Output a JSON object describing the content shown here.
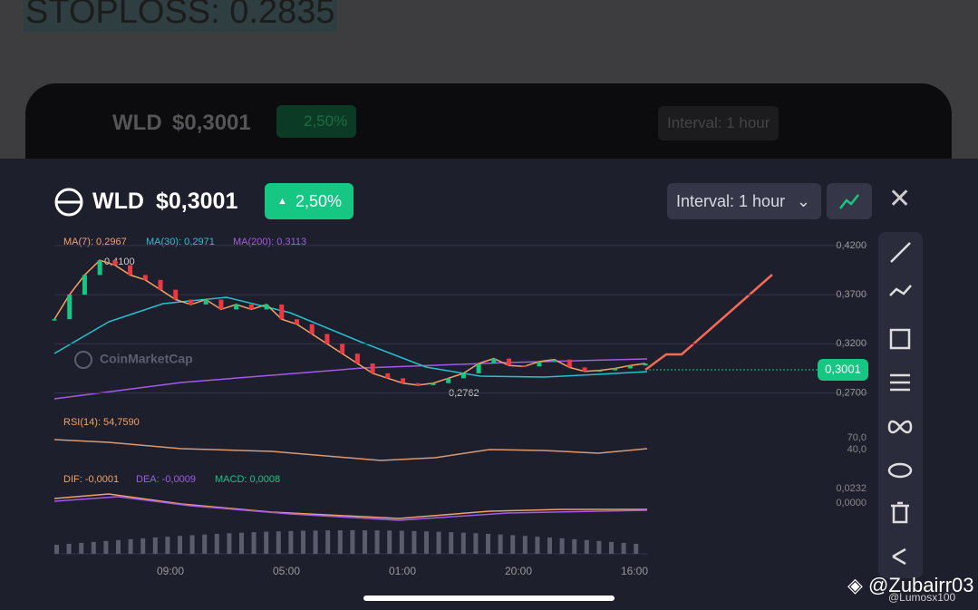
{
  "background": {
    "stoploss": "STOPLOSS: 0.2835",
    "symbol": "WLD",
    "price": "$0,3001",
    "change": "2,50%",
    "interval": "Interval: 1 hour"
  },
  "header": {
    "symbol": "WLD",
    "price": "$0,3001",
    "change": "2,50%",
    "interval": "Interval: 1 hour"
  },
  "indicators": {
    "ma7": "MA(7): 0,2967",
    "ma30": "MA(30): 0,2971",
    "ma200": "MA(200): 0,3113",
    "high": "0,4100",
    "low": "0,2762",
    "watermark": "CoinMarketCap",
    "last_price": "0,3001",
    "rsi": "RSI(14): 54,7590",
    "rsi_ticks": [
      "70,0",
      "40,0"
    ],
    "dif": "DIF: -0,0001",
    "dea": "DEA: -0,0009",
    "macd": "MACD: 0,0008",
    "macd_ticks": [
      "0,0232",
      "0,0000"
    ]
  },
  "chart_data": {
    "type": "line",
    "color": "#f1a168",
    "values": [
      0.345,
      0.37,
      0.39,
      0.405,
      0.4,
      0.39,
      0.385,
      0.375,
      0.365,
      0.36,
      0.365,
      0.355,
      0.36,
      0.355,
      0.36,
      0.345,
      0.34,
      0.33,
      0.32,
      0.31,
      0.3,
      0.29,
      0.285,
      0.28,
      0.278,
      0.28,
      0.285,
      0.29,
      0.3,
      0.305,
      0.298,
      0.297,
      0.302,
      0.304,
      0.296,
      0.292,
      0.293,
      0.295,
      0.298,
      0.3
    ],
    "ylim": [
      0.265,
      0.43
    ],
    "yticks": [
      {
        "value": 0.42,
        "label": "0,4200"
      },
      {
        "value": 0.37,
        "label": "0,3700"
      },
      {
        "value": 0.32,
        "label": "0,3200"
      },
      {
        "value": 0.27,
        "label": "0,2700"
      }
    ],
    "xticks": [
      "09:00",
      "05:00",
      "01:00",
      "20:00",
      "16:00"
    ],
    "grid": true
  },
  "watermark": {
    "user": "Zubairr03",
    "handle": "@Lumosx100"
  }
}
